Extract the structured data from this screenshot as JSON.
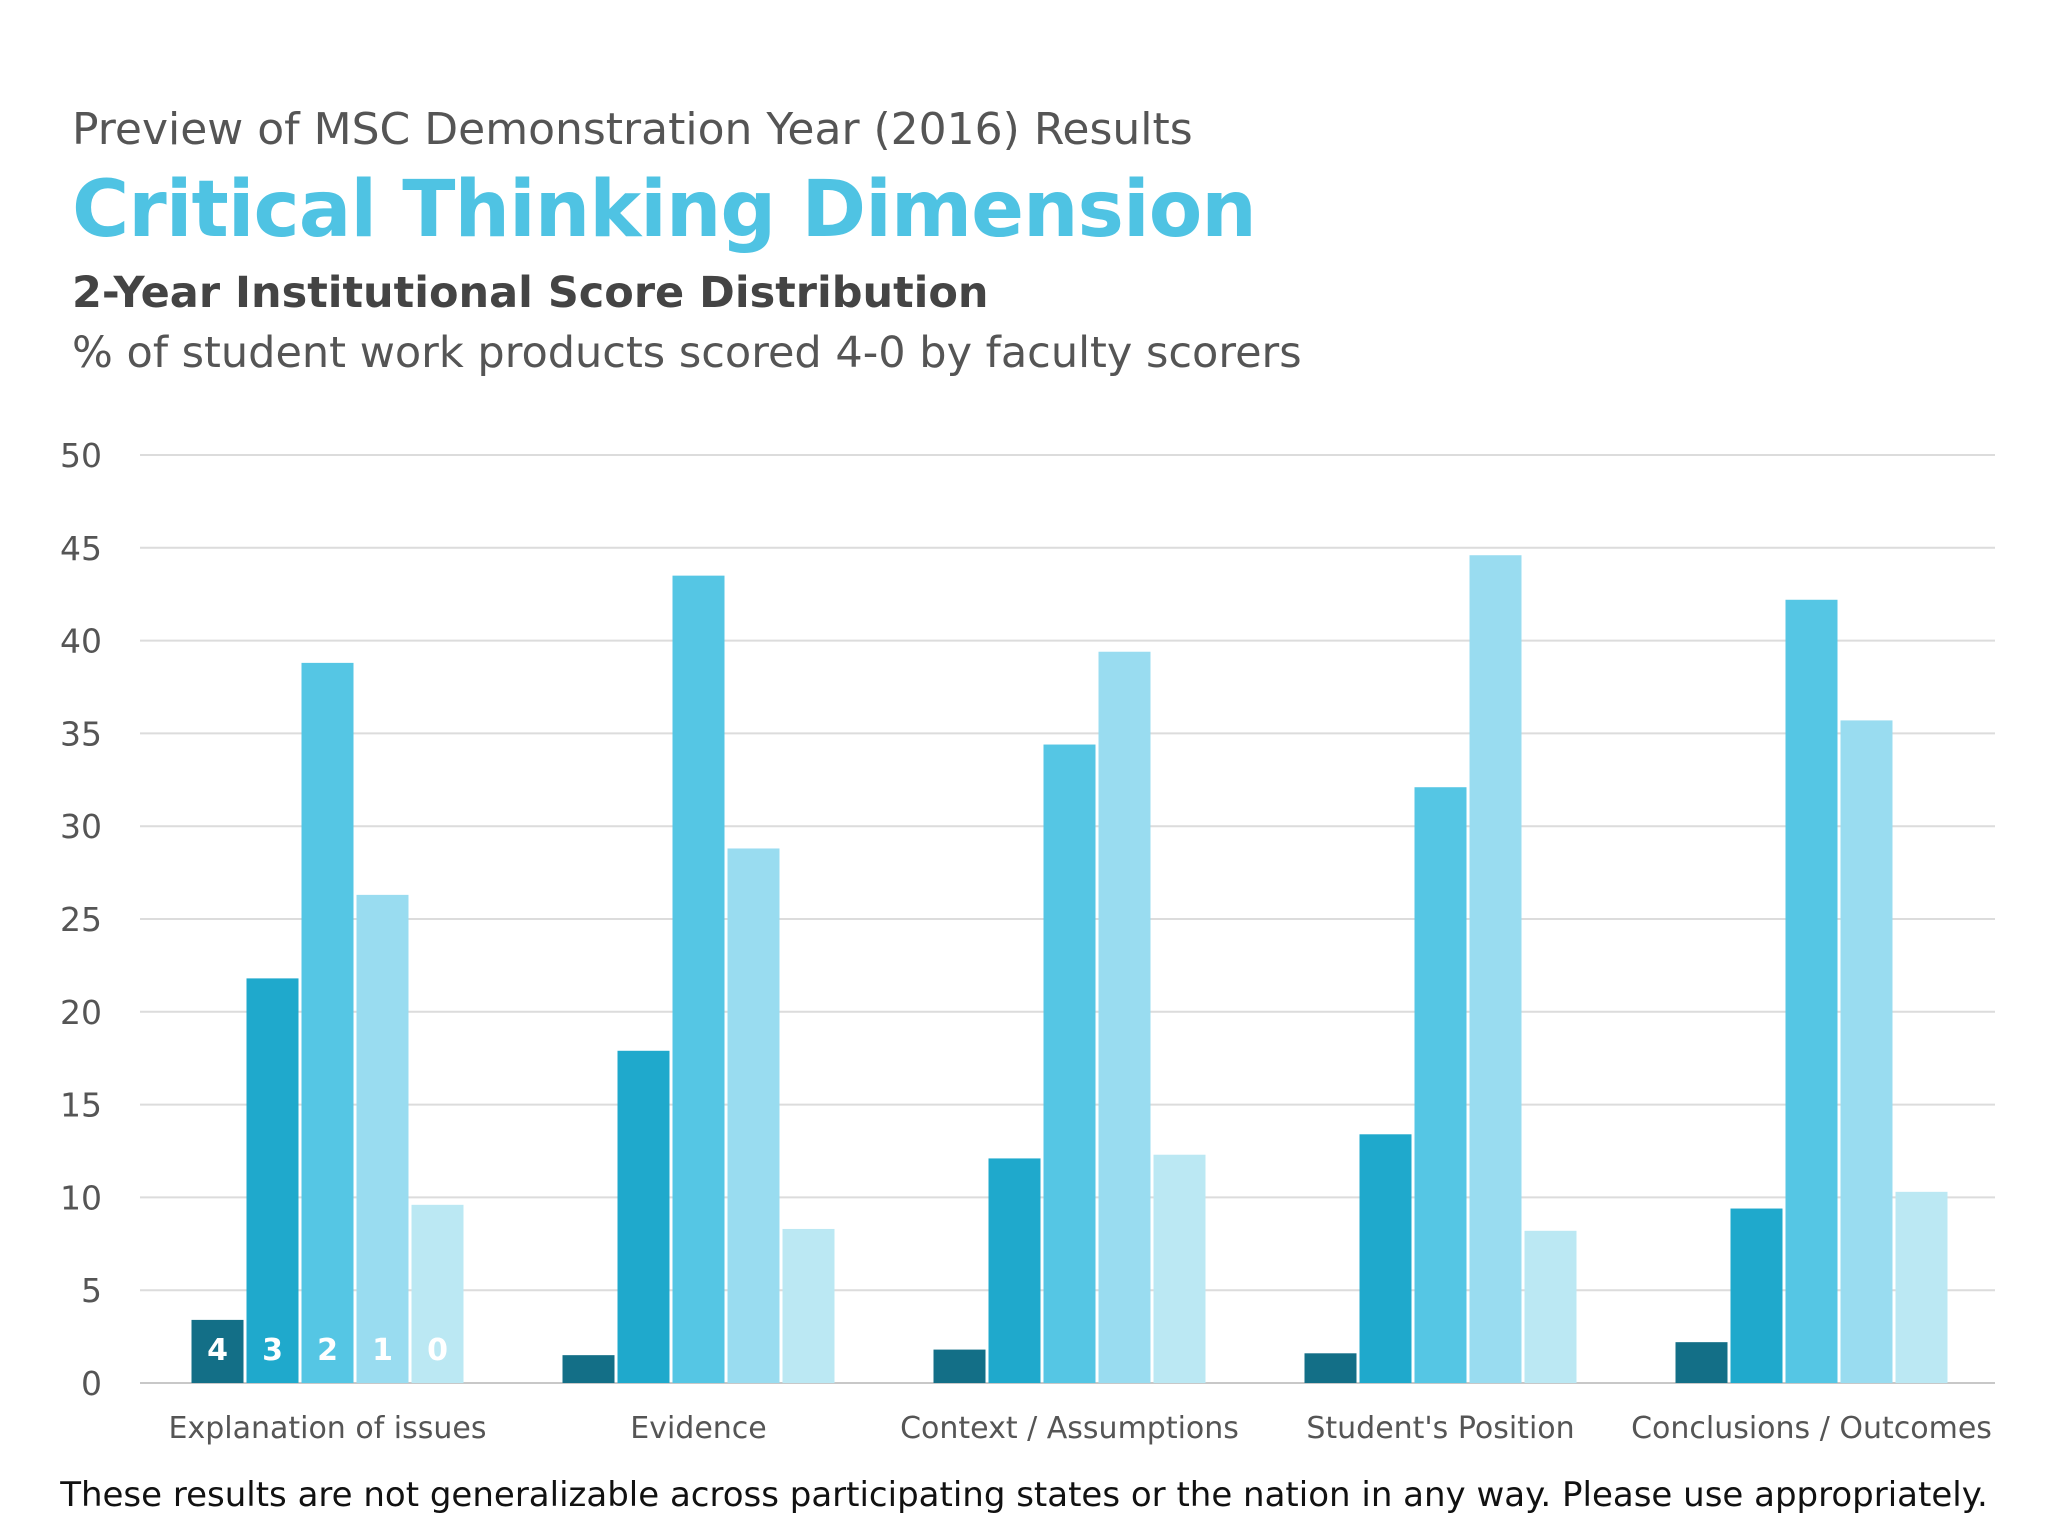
{
  "header": {
    "preview_title": "Preview of MSC Demonstration Year (2016) Results",
    "main_title": "Critical Thinking Dimension",
    "sub_title": "2-Year Institutional Score Distribution",
    "description": "% of student work products scored 4-0 by faculty scorers"
  },
  "footnote": "These results are not generalizable across participating states or the nation in any way. Please use appropriately.",
  "chart_data": {
    "type": "bar",
    "categories": [
      "Explanation of issues",
      "Evidence",
      "Context / Assumptions",
      "Student's Position",
      "Conclusions / Outcomes"
    ],
    "series": [
      {
        "name": "4",
        "color": "#136f87",
        "values": [
          3.4,
          1.5,
          1.8,
          1.6,
          2.2
        ]
      },
      {
        "name": "3",
        "color": "#1fa9cc",
        "values": [
          21.8,
          17.9,
          12.1,
          13.4,
          9.4
        ]
      },
      {
        "name": "2",
        "color": "#55c6e4",
        "values": [
          38.8,
          43.5,
          34.4,
          32.1,
          42.2
        ]
      },
      {
        "name": "1",
        "color": "#99dcf0",
        "values": [
          26.3,
          28.8,
          39.4,
          44.6,
          35.7
        ]
      },
      {
        "name": "0",
        "color": "#bbe8f3",
        "values": [
          9.6,
          8.3,
          12.3,
          8.2,
          10.3
        ]
      }
    ],
    "yticks": [
      "0",
      "5",
      "10",
      "15",
      "20",
      "25",
      "30",
      "35",
      "40",
      "45",
      "50"
    ],
    "ylim": [
      0,
      50
    ],
    "grid": true,
    "legend": "inside first bar group"
  }
}
